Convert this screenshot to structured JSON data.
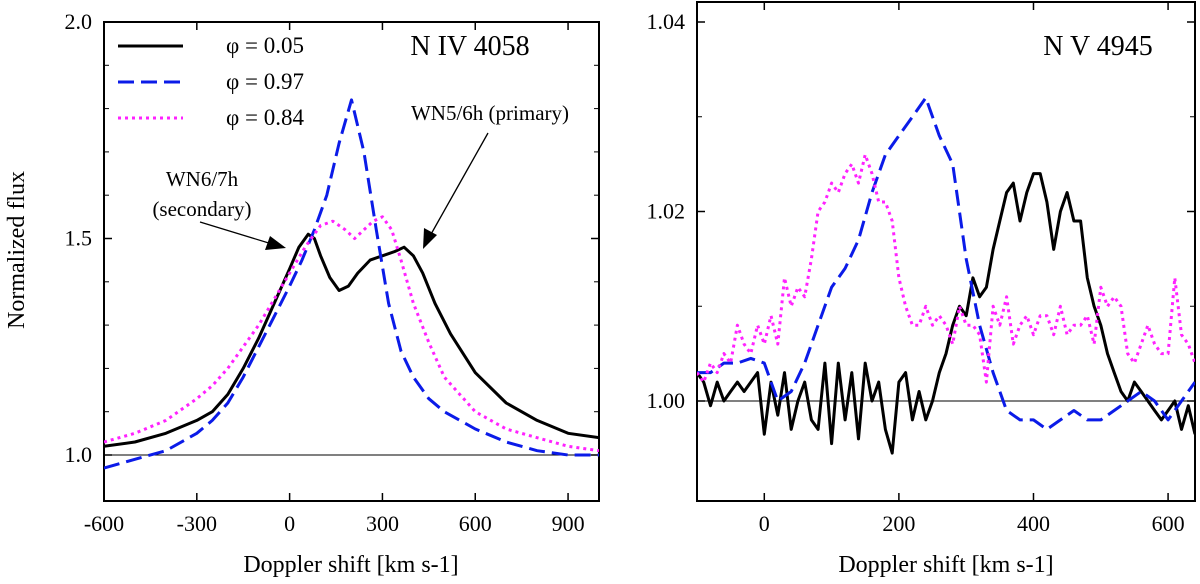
{
  "colors": {
    "phase_005": "#000000",
    "phase_097": "#0b1be8",
    "phase_084": "#ff22ff"
  },
  "chart_data": [
    {
      "type": "line",
      "title": "N IV 4058",
      "xlabel": "Doppler shift [km s-1]",
      "ylabel": "Normalized flux",
      "xlim": [
        -600,
        1000
      ],
      "ylim": [
        0.9,
        2.0
      ],
      "xticks": [
        -600,
        -300,
        0,
        300,
        600,
        900
      ],
      "xtick_labels": [
        "-600",
        "-300",
        "0",
        "300",
        "600",
        "900"
      ],
      "yticks": [
        1.0,
        1.5,
        2.0
      ],
      "ytick_labels": [
        "1.0",
        "1.5",
        "2.0"
      ],
      "reference_line": 1.0,
      "series": [
        {
          "name": "φ = 0.05",
          "style": "solid",
          "x": [
            -600,
            -500,
            -400,
            -300,
            -250,
            -200,
            -150,
            -100,
            -50,
            0,
            30,
            60,
            80,
            100,
            130,
            160,
            190,
            220,
            260,
            300,
            340,
            370,
            400,
            430,
            470,
            520,
            600,
            700,
            800,
            900,
            1000
          ],
          "y": [
            1.02,
            1.03,
            1.05,
            1.08,
            1.1,
            1.14,
            1.2,
            1.27,
            1.35,
            1.43,
            1.48,
            1.51,
            1.5,
            1.46,
            1.41,
            1.38,
            1.39,
            1.42,
            1.45,
            1.46,
            1.47,
            1.48,
            1.46,
            1.42,
            1.35,
            1.28,
            1.19,
            1.12,
            1.08,
            1.05,
            1.04
          ]
        },
        {
          "name": "φ = 0.97",
          "style": "dashed",
          "x": [
            -600,
            -500,
            -400,
            -300,
            -250,
            -200,
            -150,
            -100,
            -50,
            0,
            40,
            80,
            120,
            160,
            200,
            240,
            280,
            320,
            360,
            400,
            450,
            500,
            600,
            700,
            800,
            900,
            1000
          ],
          "y": [
            0.97,
            0.99,
            1.01,
            1.05,
            1.08,
            1.12,
            1.18,
            1.25,
            1.32,
            1.39,
            1.45,
            1.52,
            1.6,
            1.72,
            1.82,
            1.7,
            1.52,
            1.35,
            1.24,
            1.18,
            1.13,
            1.1,
            1.06,
            1.03,
            1.01,
            1.0,
            1.0
          ]
        },
        {
          "name": "φ = 0.84",
          "style": "dotted",
          "x": [
            -600,
            -500,
            -400,
            -300,
            -250,
            -200,
            -150,
            -100,
            -50,
            0,
            50,
            100,
            140,
            180,
            210,
            240,
            270,
            300,
            330,
            360,
            400,
            450,
            500,
            600,
            700,
            800,
            900,
            1000
          ],
          "y": [
            1.03,
            1.05,
            1.08,
            1.13,
            1.16,
            1.2,
            1.25,
            1.3,
            1.36,
            1.42,
            1.48,
            1.53,
            1.54,
            1.52,
            1.5,
            1.52,
            1.54,
            1.55,
            1.52,
            1.45,
            1.35,
            1.26,
            1.18,
            1.1,
            1.06,
            1.04,
            1.02,
            1.01
          ]
        }
      ],
      "legend": [
        "φ = 0.05",
        "φ = 0.97",
        "φ = 0.84"
      ],
      "legend_position": "top-left",
      "annotations": {
        "secondary_line1": "WN6/7h",
        "secondary_line2": "(secondary)",
        "primary": "WN5/6h (primary)"
      }
    },
    {
      "type": "line",
      "title": "N V 4945",
      "xlabel": "Doppler shift [km s-1]",
      "ylabel": "",
      "xlim": [
        -100,
        640
      ],
      "ylim": [
        0.99,
        1.04
      ],
      "xticks": [
        0,
        200,
        400,
        600
      ],
      "xtick_labels": [
        "0",
        "200",
        "400",
        "600"
      ],
      "yticks": [
        1.0,
        1.02,
        1.04
      ],
      "ytick_labels": [
        "1.00",
        "1.02",
        "1.04"
      ],
      "reference_line": 1.0,
      "series": [
        {
          "name": "φ = 0.05",
          "style": "solid",
          "x": [
            -100,
            -90,
            -80,
            -70,
            -60,
            -50,
            -40,
            -30,
            -20,
            -10,
            0,
            10,
            20,
            30,
            40,
            50,
            60,
            70,
            80,
            90,
            100,
            110,
            120,
            130,
            140,
            150,
            160,
            170,
            180,
            190,
            200,
            210,
            220,
            230,
            240,
            250,
            260,
            270,
            280,
            290,
            300,
            310,
            320,
            330,
            340,
            350,
            360,
            370,
            380,
            390,
            400,
            410,
            420,
            430,
            440,
            450,
            460,
            470,
            480,
            490,
            500,
            510,
            520,
            530,
            540,
            550,
            560,
            570,
            580,
            590,
            600,
            610,
            620,
            630,
            640
          ],
          "y": [
            1.003,
            1.002,
            0.9995,
            1.002,
            1.0,
            1.001,
            1.002,
            1.001,
            1.002,
            1.003,
            0.9965,
            1.002,
            0.9985,
            1.003,
            0.997,
            1.0,
            1.002,
            0.998,
            0.997,
            1.004,
            0.9955,
            1.004,
            0.998,
            1.003,
            0.996,
            1.004,
            1.0,
            1.002,
            0.997,
            0.9945,
            1.002,
            1.003,
            0.998,
            1.001,
            0.998,
            1.0,
            1.003,
            1.005,
            1.008,
            1.01,
            1.009,
            1.013,
            1.011,
            1.012,
            1.016,
            1.019,
            1.022,
            1.023,
            1.019,
            1.022,
            1.024,
            1.024,
            1.021,
            1.016,
            1.02,
            1.022,
            1.019,
            1.019,
            1.013,
            1.01,
            1.008,
            1.005,
            1.003,
            1.001,
            1.0,
            1.002,
            1.001,
            1.0,
            0.999,
            0.998,
            0.999,
            1.0,
            0.997,
            0.9995,
            0.9965
          ]
        },
        {
          "name": "φ = 0.97",
          "style": "dashed",
          "x": [
            -100,
            -80,
            -60,
            -40,
            -20,
            0,
            20,
            40,
            60,
            80,
            100,
            120,
            140,
            160,
            180,
            200,
            220,
            240,
            260,
            280,
            300,
            320,
            340,
            360,
            380,
            400,
            420,
            440,
            460,
            480,
            500,
            520,
            540,
            560,
            580,
            600,
            620,
            640
          ],
          "y": [
            1.003,
            1.003,
            1.004,
            1.004,
            1.0045,
            1.004,
            1.0,
            1.001,
            1.004,
            1.008,
            1.012,
            1.014,
            1.017,
            1.022,
            1.026,
            1.028,
            1.03,
            1.032,
            1.028,
            1.025,
            1.015,
            1.008,
            1.003,
            0.999,
            0.998,
            0.998,
            0.997,
            0.998,
            0.999,
            0.998,
            0.998,
            0.999,
            1.0,
            1.001,
            1.0,
            0.998,
            1.0,
            1.002
          ]
        },
        {
          "name": "φ = 0.84",
          "style": "dotted",
          "x": [
            -100,
            -90,
            -80,
            -70,
            -60,
            -50,
            -40,
            -30,
            -20,
            -10,
            0,
            10,
            20,
            30,
            40,
            50,
            60,
            70,
            80,
            90,
            100,
            110,
            120,
            130,
            140,
            150,
            160,
            170,
            180,
            190,
            200,
            210,
            220,
            230,
            240,
            250,
            260,
            270,
            280,
            290,
            300,
            310,
            320,
            330,
            340,
            350,
            360,
            370,
            380,
            390,
            400,
            410,
            420,
            430,
            440,
            450,
            460,
            470,
            480,
            490,
            500,
            510,
            520,
            530,
            540,
            550,
            560,
            570,
            580,
            590,
            600,
            610,
            620,
            630,
            640
          ],
          "y": [
            1.003,
            1.002,
            1.004,
            1.003,
            1.005,
            1.004,
            1.008,
            1.006,
            1.005,
            1.008,
            1.006,
            1.009,
            1.006,
            1.013,
            1.01,
            1.012,
            1.011,
            1.015,
            1.02,
            1.021,
            1.023,
            1.022,
            1.024,
            1.025,
            1.023,
            1.026,
            1.024,
            1.021,
            1.021,
            1.019,
            1.013,
            1.01,
            1.008,
            1.008,
            1.01,
            1.008,
            1.009,
            1.008,
            1.006,
            1.01,
            1.008,
            1.008,
            1.007,
            1.002,
            1.01,
            1.008,
            1.011,
            1.006,
            1.008,
            1.009,
            1.007,
            1.009,
            1.009,
            1.007,
            1.01,
            1.007,
            1.008,
            1.008,
            1.009,
            1.006,
            1.012,
            1.01,
            1.011,
            1.01,
            1.005,
            1.004,
            1.006,
            1.008,
            1.006,
            1.005,
            1.005,
            1.013,
            1.007,
            1.006,
            1.004
          ]
        }
      ]
    }
  ]
}
